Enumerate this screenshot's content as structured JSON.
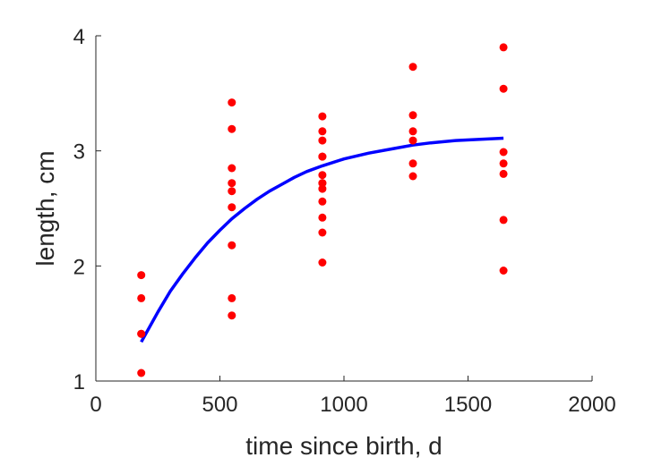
{
  "chart_data": {
    "type": "scatter",
    "title": "",
    "xlabel": "time since birth, d",
    "ylabel": "length, cm",
    "xlim": [
      0,
      2000
    ],
    "ylim": [
      1,
      4
    ],
    "x_ticks": [
      0,
      500,
      1000,
      1500,
      2000
    ],
    "y_ticks": [
      1,
      2,
      3,
      4
    ],
    "x_tick_labels": [
      "0",
      "500",
      "1000",
      "1500",
      "2000"
    ],
    "y_tick_labels": [
      "1",
      "2",
      "3",
      "4"
    ],
    "grid": false,
    "colors": {
      "points": "#ff0000",
      "curve": "#0000ff",
      "axis": "#262626"
    },
    "series": [
      {
        "kind": "points",
        "x": [
          183,
          183,
          183,
          183,
          183,
          548,
          548,
          548,
          548,
          548,
          548,
          548,
          548,
          548,
          913,
          913,
          913,
          913,
          913,
          913,
          913,
          913,
          913,
          913,
          913,
          913,
          913,
          1278,
          1278,
          1278,
          1278,
          1278,
          1278,
          1643,
          1643,
          1643,
          1643,
          1643,
          1643,
          1643
        ],
        "y": [
          1.92,
          1.72,
          1.41,
          1.41,
          1.07,
          3.42,
          3.19,
          2.85,
          2.72,
          2.65,
          2.51,
          2.18,
          1.72,
          1.57,
          3.3,
          3.17,
          3.09,
          2.95,
          2.79,
          2.72,
          2.67,
          2.56,
          2.42,
          2.29,
          2.03,
          2.95,
          2.72,
          3.73,
          3.31,
          3.17,
          3.09,
          2.89,
          2.78,
          3.9,
          3.54,
          2.99,
          2.89,
          2.8,
          2.4,
          1.96
        ]
      },
      {
        "kind": "fit-curve",
        "x": [
          183,
          250,
          300,
          350,
          400,
          450,
          500,
          548,
          600,
          650,
          700,
          750,
          800,
          850,
          913,
          1000,
          1100,
          1200,
          1278,
          1350,
          1450,
          1550,
          1643
        ],
        "y": [
          1.34,
          1.6,
          1.78,
          1.93,
          2.07,
          2.2,
          2.31,
          2.41,
          2.5,
          2.58,
          2.65,
          2.71,
          2.77,
          2.82,
          2.87,
          2.93,
          2.98,
          3.02,
          3.05,
          3.07,
          3.09,
          3.1,
          3.11
        ]
      }
    ]
  }
}
